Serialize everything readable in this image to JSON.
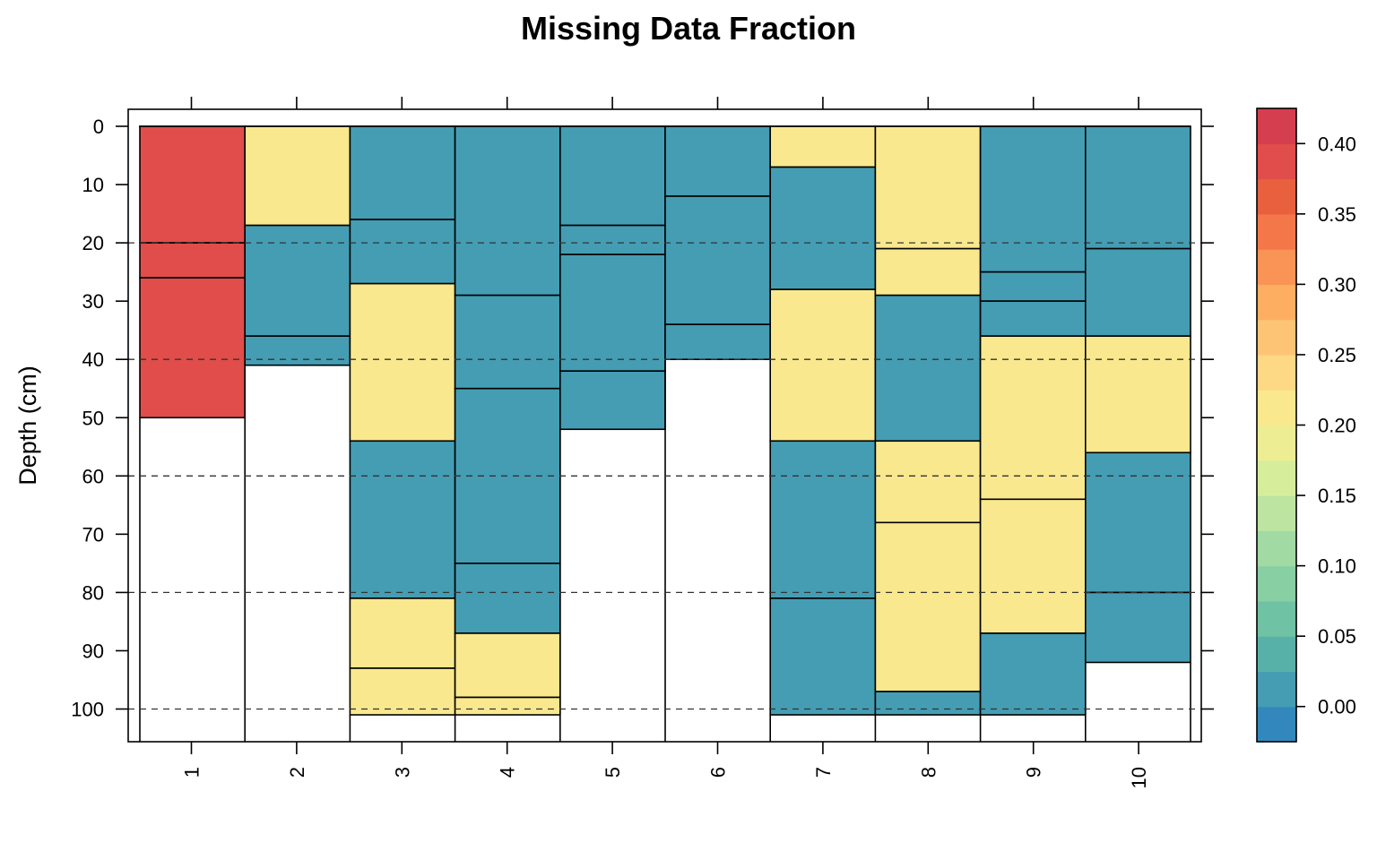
{
  "chart_data": {
    "type": "heatmap",
    "title": "Missing Data Fraction",
    "xlabel": "",
    "ylabel": "Depth (cm)",
    "ylim": [
      0,
      105
    ],
    "y_reversed": true,
    "y_ticks": [
      "0",
      "10",
      "20",
      "30",
      "40",
      "50",
      "60",
      "70",
      "80",
      "90",
      "100"
    ],
    "y_tick_values": [
      0,
      10,
      20,
      30,
      40,
      50,
      60,
      70,
      80,
      90,
      100
    ],
    "reference_lines": [
      20,
      40,
      60,
      80,
      100
    ],
    "reference_line_style": "dashed",
    "categories": [
      "1",
      "2",
      "3",
      "4",
      "5",
      "6",
      "7",
      "8",
      "9",
      "10"
    ],
    "colorbar": {
      "placement": "right",
      "range": [
        -0.025,
        0.425
      ],
      "ticks": [
        "0.00",
        "0.05",
        "0.10",
        "0.15",
        "0.20",
        "0.25",
        "0.30",
        "0.35",
        "0.40"
      ],
      "tick_values": [
        0,
        0.05,
        0.1,
        0.15,
        0.2,
        0.25,
        0.3,
        0.35,
        0.4
      ],
      "bin_edges": [
        -0.025,
        0.0,
        0.025,
        0.05,
        0.075,
        0.1,
        0.125,
        0.15,
        0.175,
        0.2,
        0.225,
        0.25,
        0.275,
        0.3,
        0.325,
        0.35,
        0.375,
        0.4,
        0.425
      ],
      "colors": [
        "#3288BD",
        "#449DB3",
        "#57B1A9",
        "#6FC2A3",
        "#88CFA4",
        "#A2DAA3",
        "#BDE4A0",
        "#D6EE9B",
        "#EDEE93",
        "#F9E88E",
        "#FDD885",
        "#FDC475",
        "#FDAE61",
        "#F99356",
        "#F4774A",
        "#E9603F",
        "#E04D4B",
        "#D53E4F"
      ]
    },
    "profiles": [
      {
        "id": "1",
        "horizons": [
          {
            "top": 0,
            "bottom": 20,
            "value": 0.39
          },
          {
            "top": 20,
            "bottom": 26,
            "value": 0.39
          },
          {
            "top": 26,
            "bottom": 50,
            "value": 0.39
          }
        ]
      },
      {
        "id": "2",
        "horizons": [
          {
            "top": 0,
            "bottom": 17,
            "value": 0.2
          },
          {
            "top": 17,
            "bottom": 36,
            "value": 0.0
          },
          {
            "top": 36,
            "bottom": 41,
            "value": 0.0
          }
        ]
      },
      {
        "id": "3",
        "horizons": [
          {
            "top": 0,
            "bottom": 16,
            "value": 0.0
          },
          {
            "top": 16,
            "bottom": 27,
            "value": 0.0
          },
          {
            "top": 27,
            "bottom": 54,
            "value": 0.2
          },
          {
            "top": 54,
            "bottom": 81,
            "value": 0.0
          },
          {
            "top": 81,
            "bottom": 93,
            "value": 0.2
          },
          {
            "top": 93,
            "bottom": 101,
            "value": 0.2
          }
        ]
      },
      {
        "id": "4",
        "horizons": [
          {
            "top": 0,
            "bottom": 29,
            "value": 0.0
          },
          {
            "top": 29,
            "bottom": 45,
            "value": 0.0
          },
          {
            "top": 45,
            "bottom": 75,
            "value": 0.0
          },
          {
            "top": 75,
            "bottom": 87,
            "value": 0.0
          },
          {
            "top": 87,
            "bottom": 98,
            "value": 0.2
          },
          {
            "top": 98,
            "bottom": 101,
            "value": 0.2
          }
        ]
      },
      {
        "id": "5",
        "horizons": [
          {
            "top": 0,
            "bottom": 17,
            "value": 0.0
          },
          {
            "top": 17,
            "bottom": 22,
            "value": 0.0
          },
          {
            "top": 22,
            "bottom": 42,
            "value": 0.0
          },
          {
            "top": 42,
            "bottom": 52,
            "value": 0.0
          }
        ]
      },
      {
        "id": "6",
        "horizons": [
          {
            "top": 0,
            "bottom": 12,
            "value": 0.0
          },
          {
            "top": 12,
            "bottom": 34,
            "value": 0.0
          },
          {
            "top": 34,
            "bottom": 40,
            "value": 0.0
          }
        ]
      },
      {
        "id": "7",
        "horizons": [
          {
            "top": 0,
            "bottom": 7,
            "value": 0.2
          },
          {
            "top": 7,
            "bottom": 28,
            "value": 0.0
          },
          {
            "top": 28,
            "bottom": 54,
            "value": 0.2
          },
          {
            "top": 54,
            "bottom": 81,
            "value": 0.0
          },
          {
            "top": 81,
            "bottom": 101,
            "value": 0.0
          }
        ]
      },
      {
        "id": "8",
        "horizons": [
          {
            "top": 0,
            "bottom": 21,
            "value": 0.2
          },
          {
            "top": 21,
            "bottom": 29,
            "value": 0.2
          },
          {
            "top": 29,
            "bottom": 54,
            "value": 0.0
          },
          {
            "top": 54,
            "bottom": 68,
            "value": 0.2
          },
          {
            "top": 68,
            "bottom": 97,
            "value": 0.2
          },
          {
            "top": 97,
            "bottom": 101,
            "value": 0.0
          }
        ]
      },
      {
        "id": "9",
        "horizons": [
          {
            "top": 0,
            "bottom": 25,
            "value": 0.0
          },
          {
            "top": 25,
            "bottom": 30,
            "value": 0.0
          },
          {
            "top": 30,
            "bottom": 36,
            "value": 0.0
          },
          {
            "top": 36,
            "bottom": 64,
            "value": 0.2
          },
          {
            "top": 64,
            "bottom": 87,
            "value": 0.2
          },
          {
            "top": 87,
            "bottom": 101,
            "value": 0.0
          }
        ]
      },
      {
        "id": "10",
        "horizons": [
          {
            "top": 0,
            "bottom": 21,
            "value": 0.0
          },
          {
            "top": 21,
            "bottom": 36,
            "value": 0.0
          },
          {
            "top": 36,
            "bottom": 56,
            "value": 0.2
          },
          {
            "top": 56,
            "bottom": 80,
            "value": 0.0
          },
          {
            "top": 80,
            "bottom": 92,
            "value": 0.0
          }
        ]
      }
    ]
  }
}
